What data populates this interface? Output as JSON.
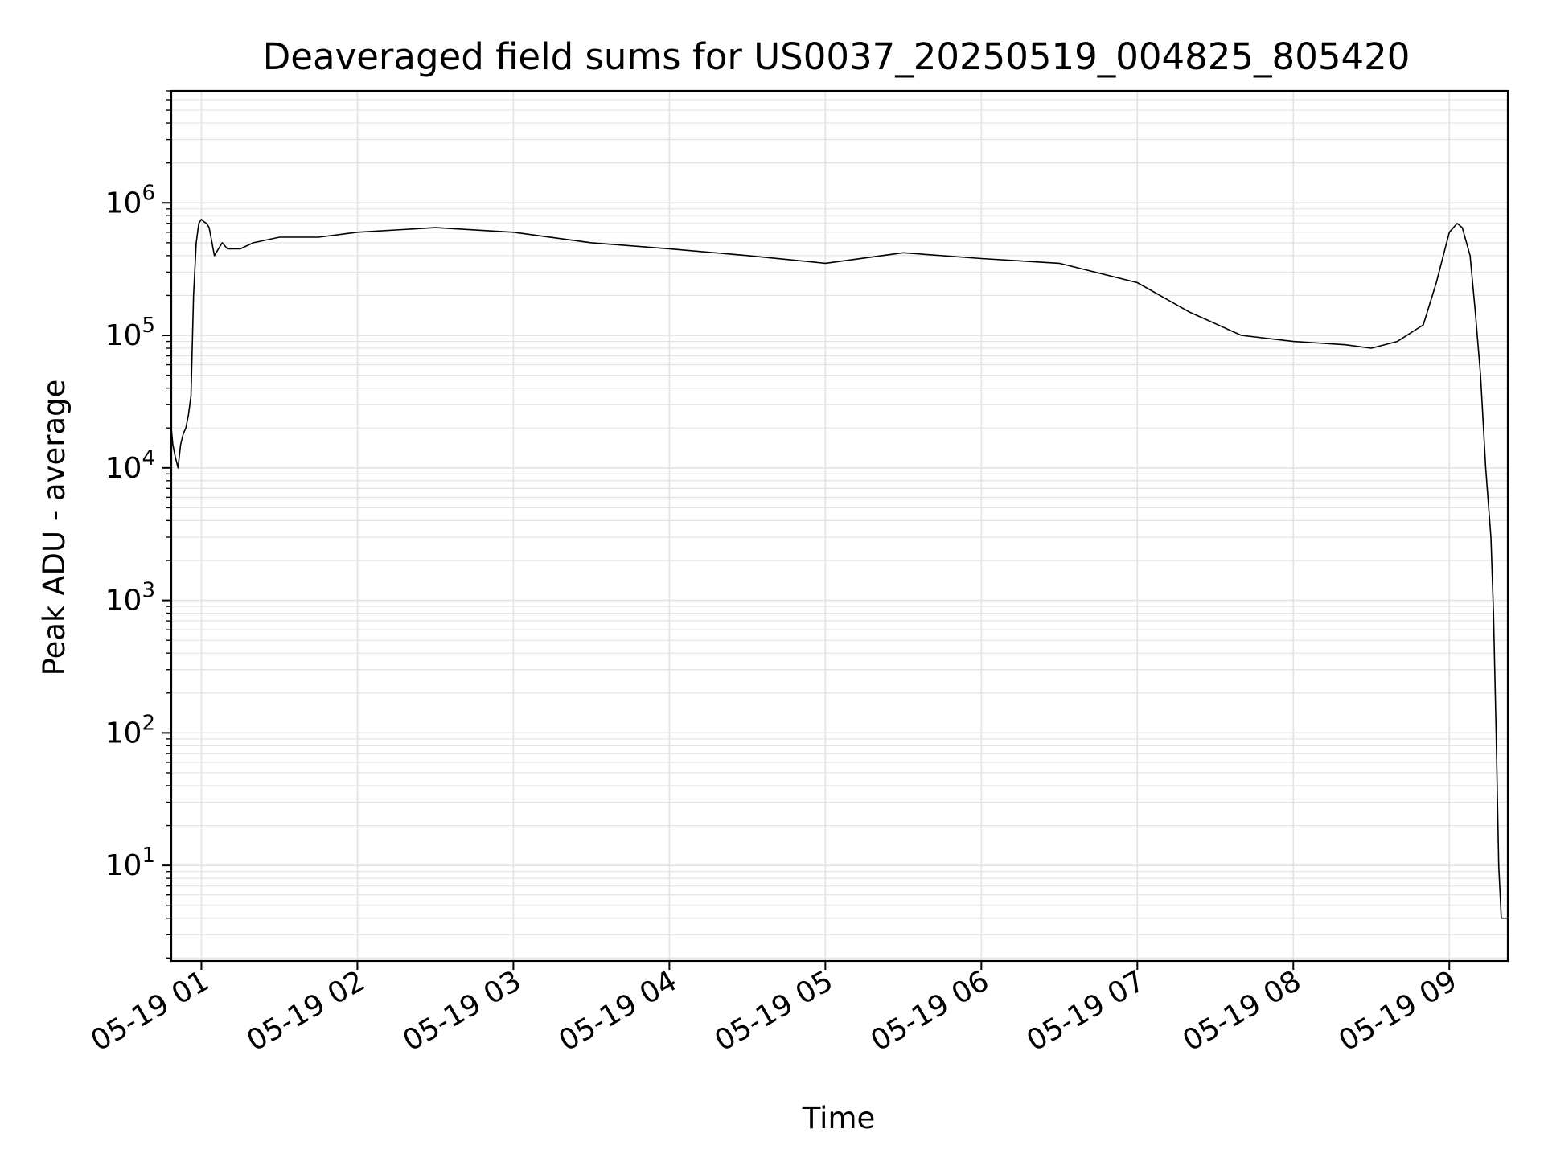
{
  "chart_data": {
    "type": "line",
    "title": "Deaveraged field sums for US0037_20250519_004825_805420",
    "xlabel": "Time",
    "ylabel": "Peak ADU - average",
    "yscale": "log",
    "ylim": [
      1.9,
      7000000
    ],
    "xlim": [
      "2025-05-19T00:48:25",
      "2025-05-19T09:22:30"
    ],
    "x_ticks": [
      {
        "time": "2025-05-19T01:00:00",
        "label": "05-19 01"
      },
      {
        "time": "2025-05-19T02:00:00",
        "label": "05-19 02"
      },
      {
        "time": "2025-05-19T03:00:00",
        "label": "05-19 03"
      },
      {
        "time": "2025-05-19T04:00:00",
        "label": "05-19 04"
      },
      {
        "time": "2025-05-19T05:00:00",
        "label": "05-19 05"
      },
      {
        "time": "2025-05-19T06:00:00",
        "label": "05-19 06"
      },
      {
        "time": "2025-05-19T07:00:00",
        "label": "05-19 07"
      },
      {
        "time": "2025-05-19T08:00:00",
        "label": "05-19 08"
      },
      {
        "time": "2025-05-19T09:00:00",
        "label": "05-19 09"
      }
    ],
    "y_ticks": [
      {
        "value": 10,
        "base": "10",
        "exp": "1"
      },
      {
        "value": 100,
        "base": "10",
        "exp": "2"
      },
      {
        "value": 1000,
        "base": "10",
        "exp": "3"
      },
      {
        "value": 10000,
        "base": "10",
        "exp": "4"
      },
      {
        "value": 100000,
        "base": "10",
        "exp": "5"
      },
      {
        "value": 1000000,
        "base": "10",
        "exp": "6"
      }
    ],
    "grid": true,
    "line_color": "#000000",
    "grid_color": "#e3e3e3",
    "series": [
      {
        "x": [
          "2025-05-19T00:48:25",
          "2025-05-19T00:49:00",
          "2025-05-19T00:50:00",
          "2025-05-19T00:51:00",
          "2025-05-19T00:52:00",
          "2025-05-19T00:53:00",
          "2025-05-19T00:54:00",
          "2025-05-19T00:55:00",
          "2025-05-19T00:56:00",
          "2025-05-19T00:57:00",
          "2025-05-19T00:58:00",
          "2025-05-19T00:59:00",
          "2025-05-19T01:00:00",
          "2025-05-19T01:01:00",
          "2025-05-19T01:02:00",
          "2025-05-19T01:03:00",
          "2025-05-19T01:05:00",
          "2025-05-19T01:08:00",
          "2025-05-19T01:10:00",
          "2025-05-19T01:15:00",
          "2025-05-19T01:20:00",
          "2025-05-19T01:30:00",
          "2025-05-19T01:45:00",
          "2025-05-19T02:00:00",
          "2025-05-19T02:30:00",
          "2025-05-19T03:00:00",
          "2025-05-19T03:30:00",
          "2025-05-19T04:00:00",
          "2025-05-19T04:30:00",
          "2025-05-19T05:00:00",
          "2025-05-19T05:30:00",
          "2025-05-19T06:00:00",
          "2025-05-19T06:30:00",
          "2025-05-19T07:00:00",
          "2025-05-19T07:20:00",
          "2025-05-19T07:40:00",
          "2025-05-19T08:00:00",
          "2025-05-19T08:20:00",
          "2025-05-19T08:30:00",
          "2025-05-19T08:40:00",
          "2025-05-19T08:50:00",
          "2025-05-19T08:55:00",
          "2025-05-19T09:00:00",
          "2025-05-19T09:03:00",
          "2025-05-19T09:05:00",
          "2025-05-19T09:08:00",
          "2025-05-19T09:10:00",
          "2025-05-19T09:12:00",
          "2025-05-19T09:14:00",
          "2025-05-19T09:16:00",
          "2025-05-19T09:17:00",
          "2025-05-19T09:18:00",
          "2025-05-19T09:19:00",
          "2025-05-19T09:20:00",
          "2025-05-19T09:21:00",
          "2025-05-19T09:22:30"
        ],
        "y": [
          20000,
          15000,
          12000,
          10000,
          15000,
          18000,
          20000,
          25000,
          35000,
          200000,
          500000,
          700000,
          750000,
          720000,
          700000,
          650000,
          400000,
          500000,
          450000,
          450000,
          500000,
          550000,
          550000,
          600000,
          650000,
          600000,
          500000,
          450000,
          400000,
          350000,
          420000,
          380000,
          350000,
          250000,
          150000,
          100000,
          90000,
          85000,
          80000,
          90000,
          120000,
          250000,
          600000,
          700000,
          650000,
          400000,
          150000,
          50000,
          10000,
          3000,
          800,
          100,
          10,
          4,
          4,
          4
        ]
      }
    ]
  }
}
